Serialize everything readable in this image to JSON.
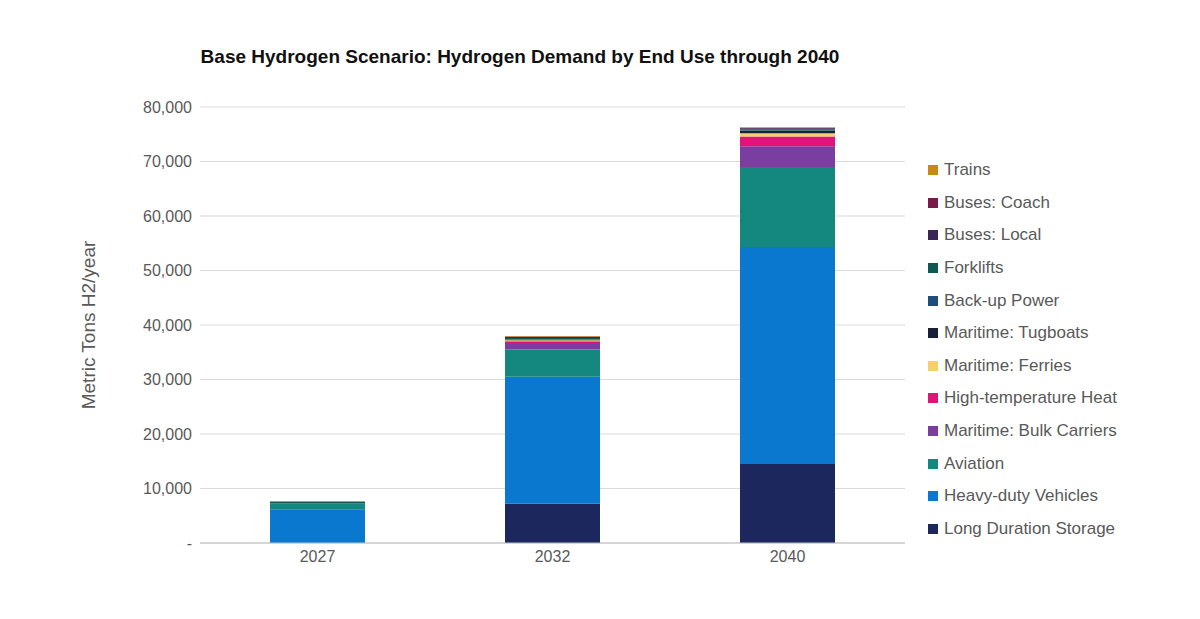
{
  "chart_data": {
    "type": "bar",
    "title": "Base Hydrogen Scenario: Hydrogen Demand by End Use through 2040",
    "y_label": "Metric Tons H2/year",
    "categories": [
      "2027",
      "2032",
      "2040"
    ],
    "stacked": true,
    "grid": true,
    "legend": "right",
    "ylim": [
      0,
      80000
    ],
    "yticks": [
      {
        "value": 0,
        "label": "-"
      },
      {
        "value": 10000,
        "label": "10,000"
      },
      {
        "value": 20000,
        "label": "20,000"
      },
      {
        "value": 30000,
        "label": "30,000"
      },
      {
        "value": 40000,
        "label": "40,000"
      },
      {
        "value": 50000,
        "label": "50,000"
      },
      {
        "value": 60000,
        "label": "60,000"
      },
      {
        "value": 70000,
        "label": "70,000"
      },
      {
        "value": 80000,
        "label": "80,000"
      }
    ],
    "series": [
      {
        "name": "Long Duration Storage",
        "color": "#1c275e",
        "values": [
          0,
          7200,
          14500
        ]
      },
      {
        "name": "Heavy-duty Vehicles",
        "color": "#0a78cf",
        "values": [
          6200,
          23300,
          39800
        ]
      },
      {
        "name": "Aviation",
        "color": "#14877f",
        "values": [
          1100,
          5000,
          14700
        ]
      },
      {
        "name": "Maritime: Bulk Carriers",
        "color": "#7a3ea0",
        "values": [
          0,
          1200,
          3800
        ]
      },
      {
        "name": "High-temperature Heat",
        "color": "#e0157a",
        "values": [
          0,
          300,
          1800
        ]
      },
      {
        "name": "Maritime: Ferries",
        "color": "#f5cf6b",
        "values": [
          0,
          200,
          600
        ]
      },
      {
        "name": "Maritime: Tugboats",
        "color": "#1a1f3a",
        "values": [
          0,
          100,
          400
        ]
      },
      {
        "name": "Back-up Power",
        "color": "#1e4e7a",
        "values": [
          0,
          100,
          100
        ]
      },
      {
        "name": "Forklifts",
        "color": "#0e5a52",
        "values": [
          300,
          200,
          200
        ]
      },
      {
        "name": "Buses: Local",
        "color": "#3a2556",
        "values": [
          0,
          200,
          200
        ]
      },
      {
        "name": "Buses: Coach",
        "color": "#7a1a4a",
        "values": [
          0,
          100,
          100
        ]
      },
      {
        "name": "Trains",
        "color": "#c98a10",
        "values": [
          0,
          100,
          100
        ]
      }
    ]
  }
}
